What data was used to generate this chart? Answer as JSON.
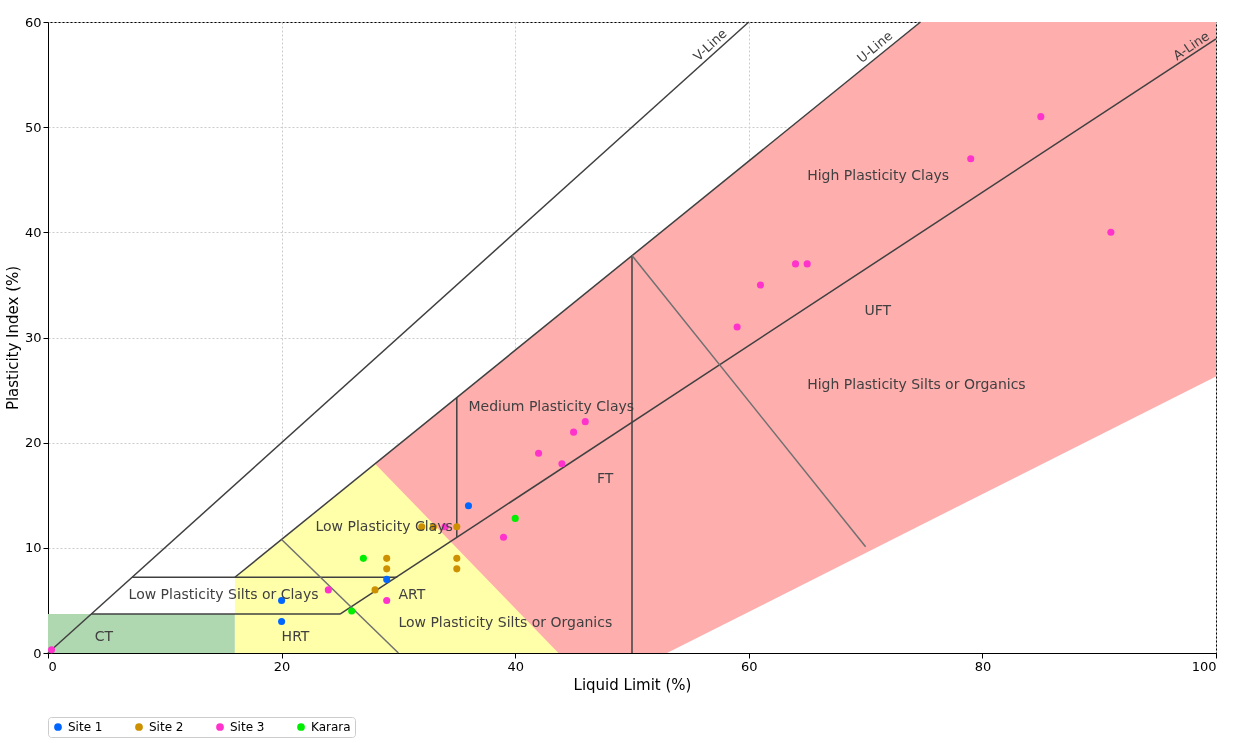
{
  "chart_data": {
    "type": "scatter",
    "xlabel": "Liquid Limit (%)",
    "ylabel": "Plasticity Index (%)",
    "xlim": [
      0,
      100
    ],
    "ylim": [
      0,
      60
    ],
    "xticks": [
      0,
      20,
      40,
      60,
      80,
      100
    ],
    "yticks": [
      0,
      10,
      20,
      30,
      40,
      50,
      60
    ],
    "grid": true,
    "legend": "bottom",
    "series": [
      {
        "type": "area",
        "color": "#ffaeae",
        "x": [
          28,
          74.7,
          100
        ],
        "values": [
          18,
          60,
          60
        ]
      },
      {
        "type": "area",
        "color": "#b0d8b0",
        "x": [
          0,
          16
        ],
        "values": [
          3.7,
          3.7
        ]
      },
      {
        "type": "area",
        "color": "#ffffaa",
        "x": [
          16,
          28,
          43.7
        ],
        "values": [
          7.2,
          18,
          0
        ]
      },
      {
        "type": "area",
        "color": "#ffffff",
        "x": [
          53,
          100
        ],
        "values": [
          0,
          26.3
        ]
      },
      {
        "type": "line",
        "color": "#404040",
        "x": [
          0,
          60
        ],
        "values": [
          0,
          60
        ]
      },
      {
        "type": "line",
        "color": "#404040",
        "x": [
          16,
          74.7
        ],
        "values": [
          7.2,
          60
        ]
      },
      {
        "type": "line",
        "color": "#404040",
        "x": [
          25,
          100
        ],
        "values": [
          3.7,
          58.4
        ]
      },
      {
        "type": "line",
        "color": "#404040",
        "x": [
          7.2,
          29.9
        ],
        "values": [
          7.2,
          7.2
        ]
      },
      {
        "type": "line",
        "color": "#404040",
        "x": [
          3.7,
          25
        ],
        "values": [
          3.7,
          3.7
        ]
      },
      {
        "type": "line",
        "color": "#404040",
        "x": [
          50,
          50
        ],
        "values": [
          0,
          37.8
        ]
      },
      {
        "type": "line",
        "color": "#404040",
        "x": [
          35,
          35
        ],
        "values": [
          11,
          24.3
        ]
      },
      {
        "type": "line",
        "color": "#707070",
        "x": [
          20,
          30
        ],
        "values": [
          10.8,
          0
        ]
      },
      {
        "type": "line",
        "color": "#707070",
        "x": [
          50,
          70
        ],
        "values": [
          37.8,
          10.1
        ]
      },
      {
        "name": "Site 1",
        "color": "#0066ff",
        "marker": "circle",
        "x": [
          20,
          20,
          29,
          36
        ],
        "values": [
          5,
          3,
          7,
          14
        ]
      },
      {
        "name": "Site 2",
        "color": "#cc9000",
        "marker": "circle",
        "x": [
          32,
          33,
          35,
          29,
          29,
          28,
          35,
          35
        ],
        "values": [
          12,
          12,
          12,
          9,
          8,
          6,
          9,
          8
        ]
      },
      {
        "name": "Site 3",
        "color": "#ff33cc",
        "marker": "circle",
        "x": [
          0.3,
          24,
          29,
          34,
          39,
          42,
          44,
          45,
          46,
          59,
          61,
          64,
          65,
          79,
          85,
          91
        ],
        "values": [
          0.3,
          6,
          5,
          12,
          11,
          19,
          18,
          21,
          22,
          31,
          35,
          37,
          37,
          47,
          51,
          40
        ]
      },
      {
        "name": "Karara",
        "color": "#00ee00",
        "marker": "circle",
        "x": [
          27,
          26,
          40
        ],
        "values": [
          9,
          4,
          12.8
        ]
      }
    ],
    "annotations": [
      "V-Line",
      "U-Line",
      "A-Line",
      "High Plasticity Clays",
      "UFT",
      "High Plasticity Silts or Organics",
      "Medium Plasticity Clays",
      "FT",
      "Low Plasticity Clays",
      "Low Plasticity Silts or Clays",
      "ART",
      "Low Plasticity Silts or Organics",
      "HRT",
      "CT"
    ]
  }
}
